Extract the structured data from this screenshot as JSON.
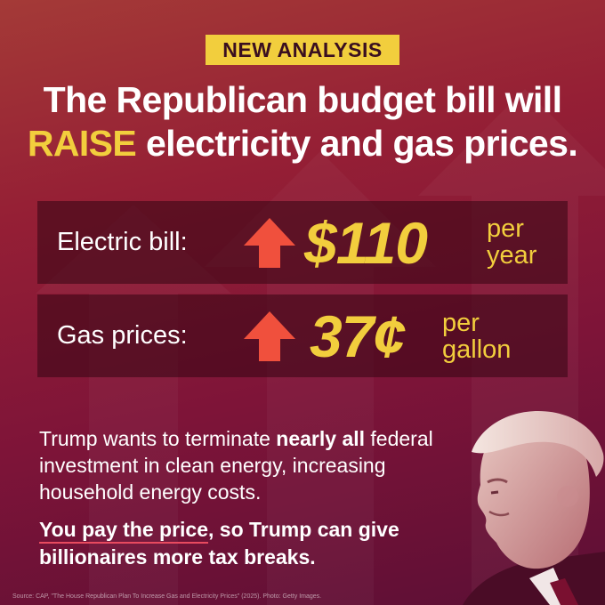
{
  "badge": "NEW ANALYSIS",
  "headline": {
    "line1": "The Republican budget bill will",
    "highlight": "RAISE",
    "line2_rest": " electricity and gas prices."
  },
  "stats": [
    {
      "label": "Electric bill:",
      "value": "$110",
      "unit_line1": "per",
      "unit_line2": "year",
      "icon": "up-arrow-icon"
    },
    {
      "label": "Gas prices:",
      "value": "37¢",
      "unit_line1": "per",
      "unit_line2": "gallon",
      "icon": "up-arrow-icon"
    }
  ],
  "body": {
    "part1": "Trump wants to terminate ",
    "bold": "nearly all",
    "part2": " federal investment in clean energy, increasing household energy costs."
  },
  "cta": {
    "underlined": "You pay the price",
    "rest": ", so Trump can give billionaires more tax breaks."
  },
  "source": "Source: CAP, \"The House Republican Plan To Increase Gas and Electricity Prices\" (2025). Photo: Getty Images.",
  "colors": {
    "accent_yellow": "#f2ce3d",
    "arrow_red": "#f0503d",
    "underline": "#e84a5f"
  }
}
